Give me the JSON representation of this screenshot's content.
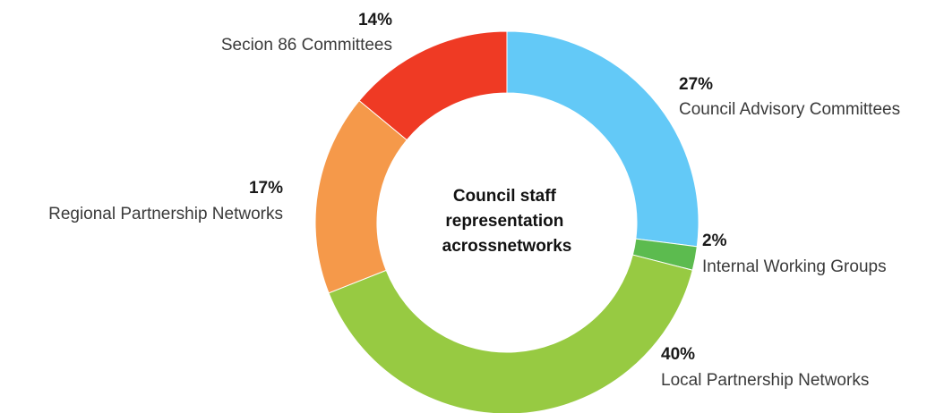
{
  "chart_data": {
    "type": "pie",
    "variant": "donut",
    "center_label": [
      "Council staff",
      "representation",
      "acrossnetworks"
    ],
    "slices": [
      {
        "label": "Council Advisory Committees",
        "value": 27,
        "value_label": "27%",
        "color": "#63c9f7"
      },
      {
        "label": "Internal Working Groups",
        "value": 2,
        "value_label": "2%",
        "color": "#5cbb4f"
      },
      {
        "label": "Local Partnership Networks",
        "value": 40,
        "value_label": "40%",
        "color": "#97ca42"
      },
      {
        "label": "Regional Partnership Networks",
        "value": 17,
        "value_label": "17%",
        "color": "#f5994a"
      },
      {
        "label": "Secion 86 Committees",
        "value": 14,
        "value_label": "14%",
        "color": "#ef3a24"
      }
    ]
  }
}
